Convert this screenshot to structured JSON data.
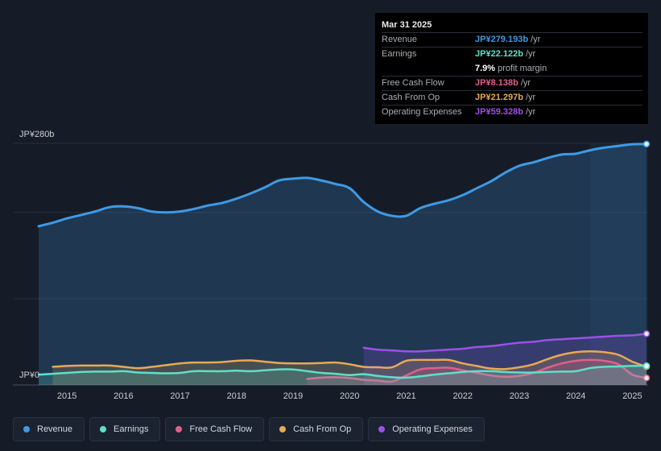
{
  "tooltip": {
    "date": "Mar 31 2025",
    "rows": [
      {
        "label": "Revenue",
        "value": "JP¥279.193b",
        "unit": "/yr",
        "color": "#3e9ae6"
      },
      {
        "label": "Earnings",
        "value": "JP¥22.122b",
        "unit": "/yr",
        "color": "#5ee0c8"
      },
      {
        "label": "",
        "value": "7.9%",
        "unit": "profit margin",
        "color": "#ffffff"
      },
      {
        "label": "Free Cash Flow",
        "value": "JP¥8.138b",
        "unit": "/yr",
        "color": "#e0608a"
      },
      {
        "label": "Cash From Op",
        "value": "JP¥21.297b",
        "unit": "/yr",
        "color": "#e8a955"
      },
      {
        "label": "Operating Expenses",
        "value": "JP¥59.328b",
        "unit": "/yr",
        "color": "#9b51e8"
      }
    ]
  },
  "legend": [
    {
      "label": "Revenue",
      "color": "#3e9ae6"
    },
    {
      "label": "Earnings",
      "color": "#5ee0c8"
    },
    {
      "label": "Free Cash Flow",
      "color": "#e0608a"
    },
    {
      "label": "Cash From Op",
      "color": "#e8a955"
    },
    {
      "label": "Operating Expenses",
      "color": "#9b51e8"
    }
  ],
  "chart_data": {
    "type": "area",
    "title": "",
    "ylabel_top": "JP¥280b",
    "ylabel_bottom": "JP¥0",
    "ylim": [
      0,
      280
    ],
    "xlim": [
      2014.5,
      2025.25
    ],
    "x_ticks": [
      "2015",
      "2016",
      "2017",
      "2018",
      "2019",
      "2020",
      "2021",
      "2022",
      "2023",
      "2024",
      "2025"
    ],
    "x_tick_values": [
      2015,
      2016,
      2017,
      2018,
      2019,
      2020,
      2021,
      2022,
      2023,
      2024,
      2025
    ],
    "highlight_start": 2024.25,
    "series": [
      {
        "name": "Revenue",
        "color": "#3e9ae6",
        "fill": true,
        "x": [
          2014.5,
          2014.75,
          2015.0,
          2015.25,
          2015.5,
          2015.75,
          2016.0,
          2016.25,
          2016.5,
          2016.75,
          2017.0,
          2017.25,
          2017.5,
          2017.75,
          2018.0,
          2018.25,
          2018.5,
          2018.75,
          2019.0,
          2019.25,
          2019.5,
          2019.75,
          2020.0,
          2020.25,
          2020.5,
          2020.75,
          2021.0,
          2021.25,
          2021.5,
          2021.75,
          2022.0,
          2022.25,
          2022.5,
          2022.75,
          2023.0,
          2023.25,
          2023.5,
          2023.75,
          2024.0,
          2024.25,
          2024.5,
          2024.75,
          2025.0,
          2025.25
        ],
        "values": [
          184,
          188,
          193,
          197,
          201,
          206,
          207,
          205,
          201,
          200,
          201,
          204,
          208,
          211,
          216,
          222,
          229,
          237,
          239,
          240,
          237,
          233,
          228,
          212,
          201,
          196,
          196,
          205,
          210,
          214,
          220,
          228,
          236,
          246,
          254,
          258,
          263,
          267,
          268,
          272,
          275,
          277,
          279,
          279.193
        ]
      },
      {
        "name": "Operating Expenses",
        "color": "#9b51e8",
        "fill": true,
        "x": [
          2020.25,
          2020.5,
          2020.75,
          2021.0,
          2021.25,
          2021.5,
          2021.75,
          2022.0,
          2022.25,
          2022.5,
          2022.75,
          2023.0,
          2023.25,
          2023.5,
          2023.75,
          2024.0,
          2024.25,
          2024.5,
          2024.75,
          2025.0,
          2025.25
        ],
        "values": [
          43,
          41,
          40,
          39,
          39,
          40,
          41,
          42,
          44,
          45,
          47,
          49,
          50,
          52,
          53,
          54,
          55,
          56,
          57,
          57.5,
          59.328
        ]
      },
      {
        "name": "Cash From Op",
        "color": "#e8a955",
        "fill": true,
        "x": [
          2014.75,
          2015.0,
          2015.25,
          2015.5,
          2015.75,
          2016.0,
          2016.25,
          2016.5,
          2016.75,
          2017.0,
          2017.25,
          2017.5,
          2017.75,
          2018.0,
          2018.25,
          2018.5,
          2018.75,
          2019.0,
          2019.25,
          2019.5,
          2019.75,
          2020.0,
          2020.25,
          2020.5,
          2020.75,
          2021.0,
          2021.25,
          2021.5,
          2021.75,
          2022.0,
          2022.25,
          2022.5,
          2022.75,
          2023.0,
          2023.25,
          2023.5,
          2023.75,
          2024.0,
          2024.25,
          2024.5,
          2024.75,
          2025.0,
          2025.25
        ],
        "values": [
          21,
          22,
          22.5,
          22.5,
          22.5,
          21,
          19.5,
          21,
          23,
          25,
          26,
          26,
          26.5,
          28,
          28.5,
          27,
          25.5,
          25,
          25,
          25.5,
          26,
          24,
          21,
          20.5,
          20.5,
          28,
          29,
          29,
          29,
          25,
          22,
          19,
          18.5,
          20.5,
          24,
          30,
          35,
          38,
          39,
          38,
          35,
          27,
          21.297
        ]
      },
      {
        "name": "Free Cash Flow",
        "color": "#e0608a",
        "fill": true,
        "x": [
          2019.25,
          2019.5,
          2019.75,
          2020.0,
          2020.25,
          2020.5,
          2020.75,
          2021.0,
          2021.25,
          2021.5,
          2021.75,
          2022.0,
          2022.25,
          2022.5,
          2022.75,
          2023.0,
          2023.25,
          2023.5,
          2023.75,
          2024.0,
          2024.25,
          2024.5,
          2024.75,
          2025.0,
          2025.25
        ],
        "values": [
          7,
          8.5,
          9,
          8,
          6,
          5,
          4,
          11,
          18,
          19.5,
          20,
          17,
          14,
          11,
          9.5,
          10.5,
          14,
          20,
          25,
          28,
          29,
          28,
          24,
          12,
          8.138
        ]
      },
      {
        "name": "Earnings",
        "color": "#5ee0c8",
        "fill": true,
        "x": [
          2014.5,
          2014.75,
          2015.0,
          2015.25,
          2015.5,
          2015.75,
          2016.0,
          2016.25,
          2016.5,
          2016.75,
          2017.0,
          2017.25,
          2017.5,
          2017.75,
          2018.0,
          2018.25,
          2018.5,
          2018.75,
          2019.0,
          2019.25,
          2019.5,
          2019.75,
          2020.0,
          2020.25,
          2020.5,
          2020.75,
          2021.0,
          2021.25,
          2021.5,
          2021.75,
          2022.0,
          2022.25,
          2022.5,
          2022.75,
          2023.0,
          2023.25,
          2023.5,
          2023.75,
          2024.0,
          2024.25,
          2024.5,
          2024.75,
          2025.0,
          2025.25
        ],
        "values": [
          12,
          13,
          14,
          15,
          15.5,
          15.5,
          16,
          14.5,
          14,
          13.5,
          14,
          16,
          16,
          16,
          16.5,
          16,
          17,
          18,
          18,
          16,
          14,
          13,
          11.5,
          12.5,
          10.5,
          9,
          8.5,
          10,
          12,
          13.5,
          15,
          16,
          16,
          15,
          14.5,
          14.5,
          15,
          15.5,
          16,
          19.5,
          21,
          21.5,
          22,
          22.122
        ]
      }
    ]
  }
}
